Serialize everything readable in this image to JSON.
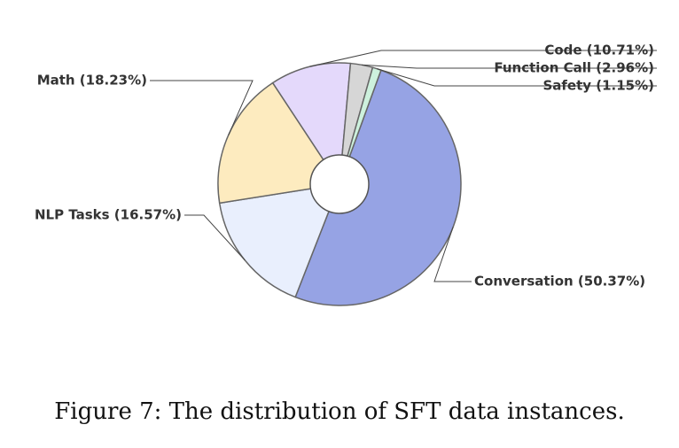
{
  "chart_data": {
    "type": "pie",
    "donut": true,
    "slices": [
      {
        "label": "Conversation",
        "value": 50.37,
        "display": "Conversation (50.37%)",
        "color": "#96a3e4"
      },
      {
        "label": "NLP Tasks",
        "value": 16.57,
        "display": "NLP Tasks (16.57%)",
        "color": "#e9effd"
      },
      {
        "label": "Math",
        "value": 18.23,
        "display": "Math (18.23%)",
        "color": "#fdebbf"
      },
      {
        "label": "Code",
        "value": 10.71,
        "display": "Code (10.71%)",
        "color": "#e4d9fb"
      },
      {
        "label": "Function Call",
        "value": 2.96,
        "display": "Function Call (2.96%)",
        "color": "#d6d6d6"
      },
      {
        "label": "Safety",
        "value": 1.15,
        "display": "Safety (1.15%)",
        "color": "#cdf1dd"
      }
    ]
  },
  "caption": "Figure 7: The distribution of SFT data instances."
}
